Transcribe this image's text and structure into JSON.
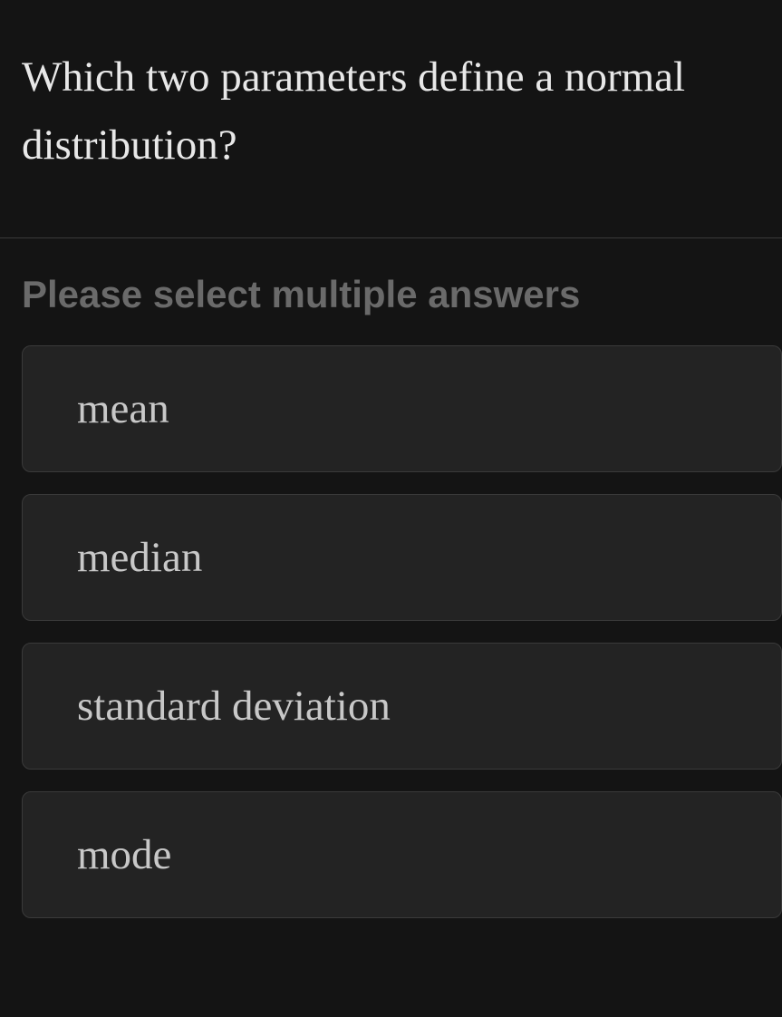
{
  "question": {
    "text": "Which two parameters define a normal distribution?"
  },
  "instruction": "Please select multiple answers",
  "answers": [
    {
      "label": "mean"
    },
    {
      "label": "median"
    },
    {
      "label": "standard deviation"
    },
    {
      "label": "mode"
    }
  ],
  "colors": {
    "background": "#141414",
    "question_text": "#e8e8e8",
    "instruction_text": "#6a6a6a",
    "option_bg": "#232323",
    "option_border": "#3a3a3a",
    "option_text": "#c8c8c8",
    "divider": "#3a3a3a"
  },
  "typography": {
    "question_fontsize": 47,
    "instruction_fontsize": 42,
    "option_fontsize": 47
  }
}
